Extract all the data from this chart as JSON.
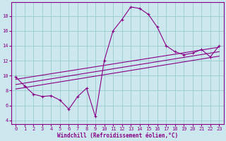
{
  "xlabel": "Windchill (Refroidissement éolien,°C)",
  "bg_color": "#cce8ee",
  "line_color": "#880088",
  "grid_color": "#99cccc",
  "x_values": [
    0,
    1,
    2,
    3,
    4,
    5,
    6,
    7,
    8,
    9,
    10,
    11,
    12,
    13,
    14,
    15,
    16,
    17,
    18,
    19,
    20,
    21,
    22,
    23
  ],
  "y_main": [
    9.8,
    8.6,
    7.5,
    7.2,
    7.3,
    6.7,
    5.5,
    7.2,
    8.3,
    4.5,
    12.0,
    16.0,
    17.5,
    19.2,
    19.0,
    18.2,
    16.5,
    14.0,
    13.2,
    12.8,
    13.0,
    13.5,
    12.5,
    14.0
  ],
  "ylim": [
    3.5,
    19.8
  ],
  "xlim": [
    -0.5,
    23.5
  ],
  "yticks": [
    4,
    6,
    8,
    10,
    12,
    14,
    16,
    18
  ],
  "xticks": [
    0,
    1,
    2,
    3,
    4,
    5,
    6,
    7,
    8,
    9,
    10,
    11,
    12,
    13,
    14,
    15,
    16,
    17,
    18,
    19,
    20,
    21,
    22,
    23
  ],
  "trend_lines": [
    {
      "x": [
        0,
        23
      ],
      "y": [
        9.5,
        13.8
      ]
    },
    {
      "x": [
        0,
        23
      ],
      "y": [
        8.8,
        13.2
      ]
    },
    {
      "x": [
        0,
        23
      ],
      "y": [
        8.2,
        12.6
      ]
    }
  ]
}
